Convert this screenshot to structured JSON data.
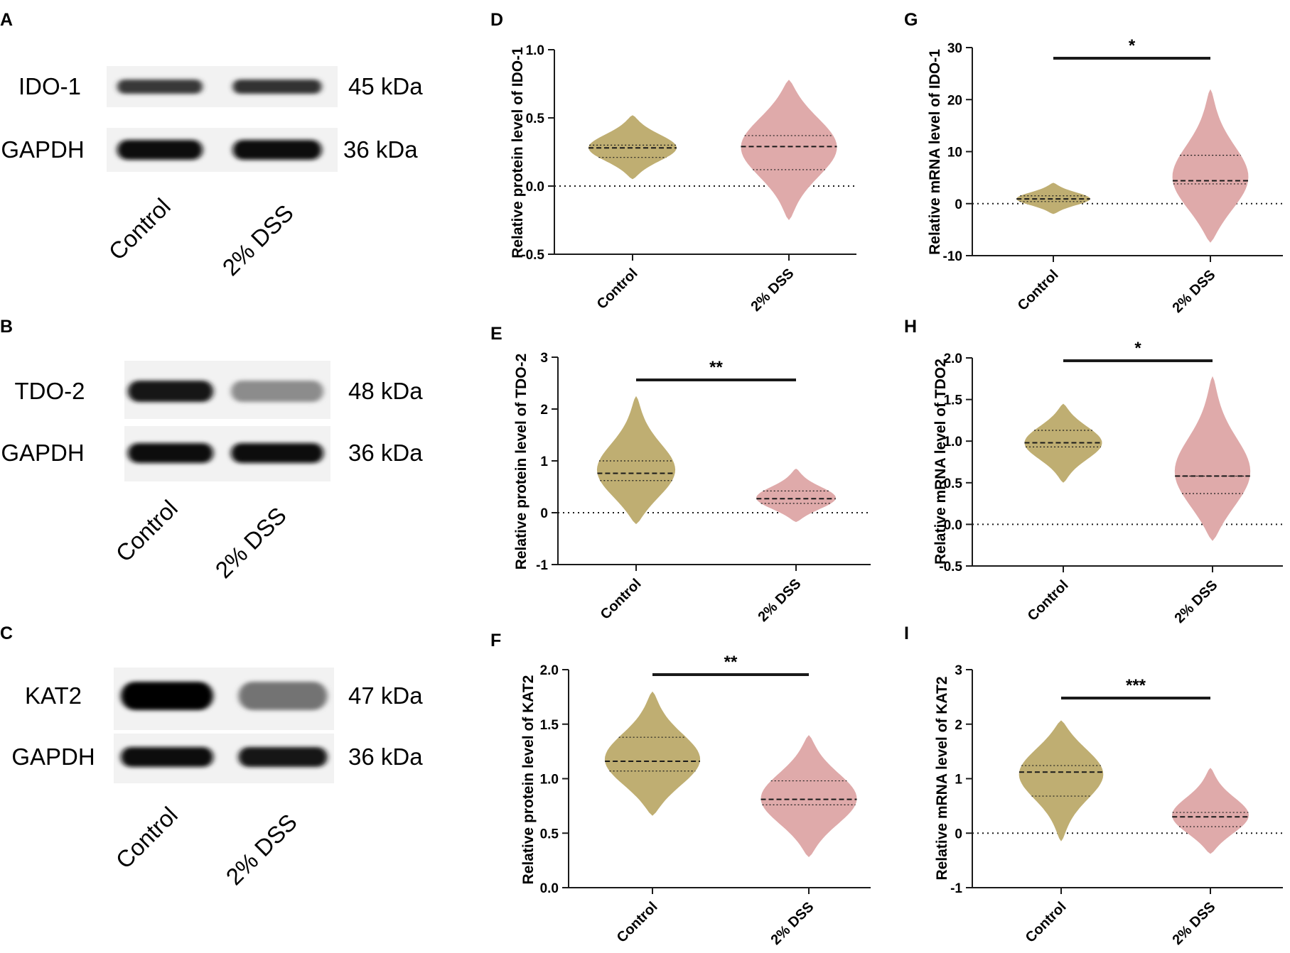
{
  "figure": {
    "colors": {
      "control": "#bfae72",
      "dss": "#dfaaaa",
      "line": "#1a1a1a"
    },
    "blots": [
      {
        "panel": "A",
        "lanes": [
          "Control",
          "2% DSS"
        ],
        "rows": [
          {
            "protein": "IDO-1",
            "size": "45 kDa",
            "intensity": [
              0.78,
              0.8
            ]
          },
          {
            "protein": "GAPDH",
            "size": "36 kDa",
            "intensity": [
              0.97,
              0.95
            ]
          }
        ]
      },
      {
        "panel": "B",
        "lanes": [
          "Control",
          "2% DSS"
        ],
        "rows": [
          {
            "protein": "TDO-2",
            "size": "48 kDa",
            "intensity": [
              0.92,
              0.45
            ]
          },
          {
            "protein": "GAPDH",
            "size": "36 kDa",
            "intensity": [
              0.95,
              0.95
            ]
          }
        ]
      },
      {
        "panel": "C",
        "lanes": [
          "Control",
          "2% DSS"
        ],
        "rows": [
          {
            "protein": "KAT2",
            "size": "47 kDa",
            "intensity": [
              1.0,
              0.55
            ]
          },
          {
            "protein": "GAPDH",
            "size": "36 kDa",
            "intensity": [
              0.95,
              0.93
            ]
          }
        ]
      }
    ]
  },
  "chart_data": [
    {
      "panel": "D",
      "type": "violin",
      "ylabel": "Relative protein level of IDO-1",
      "categories": [
        "Control",
        "2% DSS"
      ],
      "ylim": [
        -0.5,
        1.0
      ],
      "yticks": [
        -0.5,
        0.0,
        0.5,
        1.0
      ],
      "ytick_labels": [
        "-0.5",
        "0.0",
        "0.5",
        "1.0"
      ],
      "series": [
        {
          "name": "Control",
          "min": 0.05,
          "max": 0.52,
          "q1": 0.21,
          "median": 0.28,
          "q3": 0.3,
          "width": 0.22
        },
        {
          "name": "2% DSS",
          "min": -0.25,
          "max": 0.78,
          "q1": 0.12,
          "median": 0.29,
          "q3": 0.37,
          "width": 0.24
        }
      ],
      "significance": null
    },
    {
      "panel": "E",
      "type": "violin",
      "ylabel": "Relative protein level of TDO-2",
      "categories": [
        "Control",
        "2% DSS"
      ],
      "ylim": [
        -1,
        3
      ],
      "yticks": [
        -1,
        0,
        1,
        2,
        3
      ],
      "ytick_labels": [
        "-1",
        "0",
        "1",
        "2",
        "3"
      ],
      "series": [
        {
          "name": "Control",
          "min": -0.22,
          "max": 2.25,
          "q1": 0.62,
          "median": 0.76,
          "q3": 1.0,
          "width": 0.2
        },
        {
          "name": "2% DSS",
          "min": -0.18,
          "max": 0.85,
          "q1": 0.18,
          "median": 0.27,
          "q3": 0.42,
          "width": 0.2
        }
      ],
      "significance": "**"
    },
    {
      "panel": "F",
      "type": "violin",
      "ylabel": "Relative protein level of KAT2",
      "categories": [
        "Control",
        "2% DSS"
      ],
      "ylim": [
        0.0,
        2.0
      ],
      "yticks": [
        0.0,
        0.5,
        1.0,
        1.5,
        2.0
      ],
      "ytick_labels": [
        "0.0",
        "0.5",
        "1.0",
        "1.5",
        "2.0"
      ],
      "series": [
        {
          "name": "Control",
          "min": 0.66,
          "max": 1.8,
          "q1": 1.07,
          "median": 1.16,
          "q3": 1.38,
          "width": 0.24
        },
        {
          "name": "2% DSS",
          "min": 0.28,
          "max": 1.4,
          "q1": 0.76,
          "median": 0.81,
          "q3": 0.98,
          "width": 0.24
        }
      ],
      "significance": "**"
    },
    {
      "panel": "G",
      "type": "violin",
      "ylabel": "Relative mRNA level of IDO-1",
      "categories": [
        "Control",
        "2% DSS"
      ],
      "ylim": [
        -10,
        30
      ],
      "yticks": [
        -10,
        0,
        10,
        20,
        30
      ],
      "ytick_labels": [
        "-10",
        "0",
        "10",
        "20",
        "30"
      ],
      "series": [
        {
          "name": "Control",
          "min": -2,
          "max": 4,
          "q1": 0.4,
          "median": 0.9,
          "q3": 1.5,
          "width": 0.19
        },
        {
          "name": "2% DSS",
          "min": -7.5,
          "max": 22,
          "q1": 3.8,
          "median": 4.4,
          "q3": 9.3,
          "width": 0.2
        }
      ],
      "significance": "*"
    },
    {
      "panel": "H",
      "type": "violin",
      "ylabel": "Relative mRNA level of TDO2",
      "categories": [
        "Control",
        "2% DSS"
      ],
      "ylim": [
        -0.5,
        2.0
      ],
      "yticks": [
        -0.5,
        0.0,
        0.5,
        1.0,
        1.5,
        2.0
      ],
      "ytick_labels": [
        "-0.5",
        "0.0",
        "0.5",
        "1.0",
        "1.5",
        "2.0"
      ],
      "series": [
        {
          "name": "Control",
          "min": 0.5,
          "max": 1.45,
          "q1": 0.93,
          "median": 0.98,
          "q3": 1.13,
          "width": 0.2
        },
        {
          "name": "2% DSS",
          "min": -0.2,
          "max": 1.78,
          "q1": 0.37,
          "median": 0.58,
          "q3": 0.58,
          "width": 0.2
        }
      ],
      "significance": "*"
    },
    {
      "panel": "I",
      "type": "violin",
      "ylabel": "Relative mRNA level of KAT2",
      "categories": [
        "Control",
        "2% DSS"
      ],
      "ylim": [
        -1,
        3
      ],
      "yticks": [
        -1,
        0,
        1,
        2,
        3
      ],
      "ytick_labels": [
        "-1",
        "0",
        "1",
        "2",
        "3"
      ],
      "series": [
        {
          "name": "Control",
          "min": -0.15,
          "max": 2.07,
          "q1": 0.68,
          "median": 1.12,
          "q3": 1.24,
          "width": 0.22
        },
        {
          "name": "2% DSS",
          "min": -0.38,
          "max": 1.2,
          "q1": 0.12,
          "median": 0.3,
          "q3": 0.38,
          "width": 0.2
        }
      ],
      "significance": "***"
    }
  ]
}
